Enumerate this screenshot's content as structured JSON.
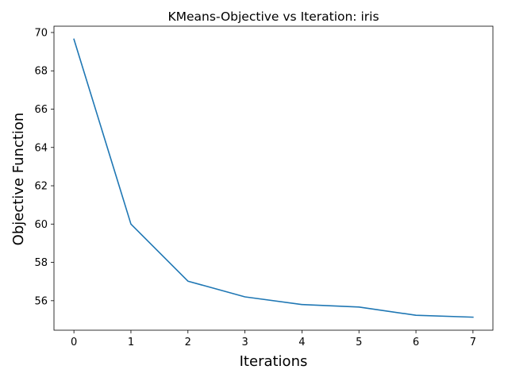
{
  "chart_data": {
    "type": "line",
    "title": "KMeans-Objective vs Iteration: iris",
    "xlabel": "Iterations",
    "ylabel": "Objective Function",
    "x": [
      0,
      1,
      2,
      3,
      4,
      5,
      6,
      7
    ],
    "series": [
      {
        "values": [
          69.65,
          60.0,
          57.02,
          56.2,
          55.8,
          55.67,
          55.24,
          55.14
        ],
        "color": "#1f77b4"
      }
    ],
    "xlim": [
      -0.35,
      7.35
    ],
    "ylim": [
      54.46,
      70.33
    ],
    "xticks": [
      0,
      1,
      2,
      3,
      4,
      5,
      6,
      7
    ],
    "yticks": [
      56,
      58,
      60,
      62,
      64,
      66,
      68,
      70
    ],
    "grid": false,
    "legend": "none"
  }
}
